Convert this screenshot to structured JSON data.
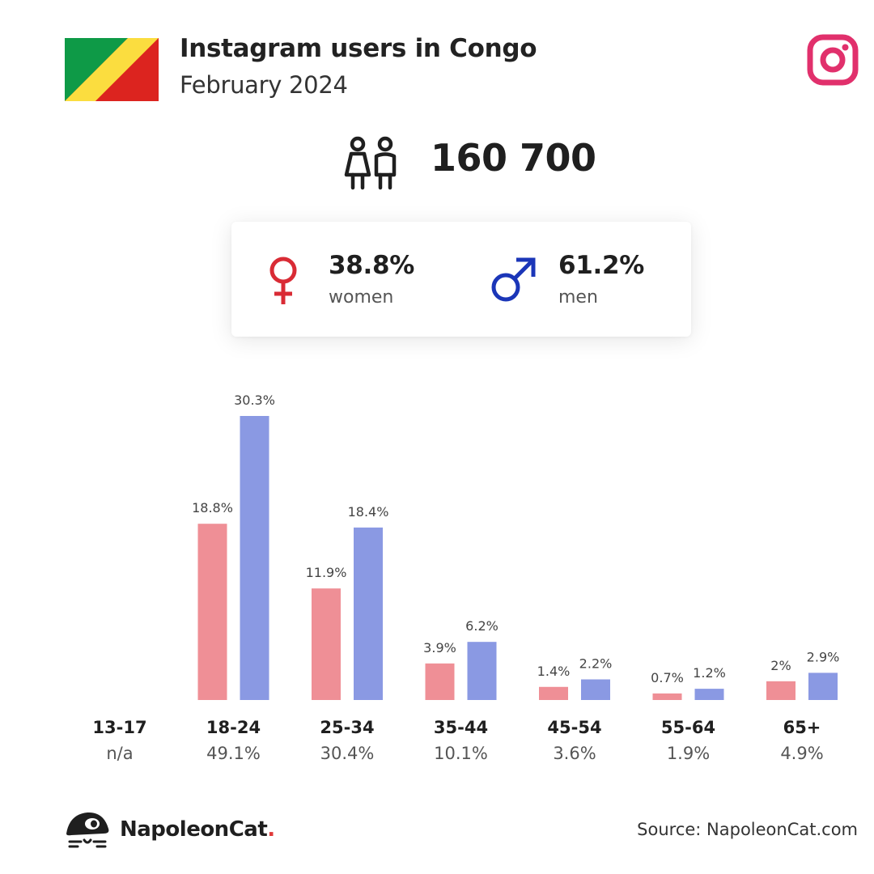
{
  "header": {
    "title": "Instagram users in Congo",
    "subtitle": "February 2024"
  },
  "total_users": "160 700",
  "gender": {
    "women_pct": "38.8%",
    "women_label": "women",
    "men_pct": "61.2%",
    "men_label": "men"
  },
  "colors": {
    "women": "#ef8f96",
    "men": "#8a99e3",
    "female_icon": "#d92b35",
    "male_icon": "#1b36b8",
    "instagram": "#e1306c",
    "flag_green": "#0e9a47",
    "flag_yellow": "#fbdd3f",
    "flag_red": "#dc241f"
  },
  "icons": {
    "flag": "congo-flag-icon",
    "platform": "instagram-icon",
    "users": "people-icon",
    "women": "female-symbol-icon",
    "men": "male-symbol-icon",
    "brand": "napoleoncat-logo-icon"
  },
  "chart_data": {
    "type": "bar",
    "categories": [
      "13-17",
      "18-24",
      "25-34",
      "35-44",
      "45-54",
      "55-64",
      "65+"
    ],
    "category_totals": [
      "n/a",
      "49.1%",
      "30.4%",
      "10.1%",
      "3.6%",
      "1.9%",
      "4.9%"
    ],
    "series": [
      {
        "key": "women",
        "values": [
          null,
          18.8,
          11.9,
          3.9,
          1.4,
          0.7,
          2.0
        ],
        "labels": [
          "",
          "18.8%",
          "11.9%",
          "3.9%",
          "1.4%",
          "0.7%",
          "2%"
        ]
      },
      {
        "key": "men",
        "values": [
          null,
          30.3,
          18.4,
          6.2,
          2.2,
          1.2,
          2.9
        ],
        "labels": [
          "",
          "30.3%",
          "18.4%",
          "6.2%",
          "2.2%",
          "1.2%",
          "2.9%"
        ]
      }
    ],
    "ylim": [
      0,
      30.3
    ],
    "grid": false,
    "legend": "none"
  },
  "footer": {
    "brand_name": "NapoleonCat",
    "brand_dot": ".",
    "source": "Source: NapoleonCat.com"
  }
}
